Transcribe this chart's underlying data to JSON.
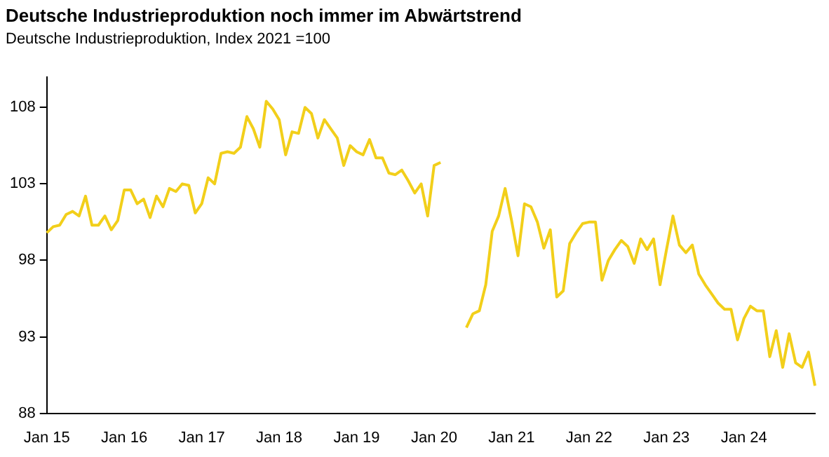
{
  "chart_data": {
    "type": "line",
    "title": "Deutsche Industrieproduktion noch immer im Abwärtstrend",
    "subtitle": "Deutsche Industrieproduktion, Index 2021 =100",
    "categories": [
      "Jan 15",
      null,
      null,
      null,
      null,
      null,
      null,
      null,
      null,
      null,
      null,
      null,
      "Jan 16",
      null,
      null,
      null,
      null,
      null,
      null,
      null,
      null,
      null,
      null,
      null,
      "Jan 17",
      null,
      null,
      null,
      null,
      null,
      null,
      null,
      null,
      null,
      null,
      null,
      "Jan 18",
      null,
      null,
      null,
      null,
      null,
      null,
      null,
      null,
      null,
      null,
      null,
      "Jan 19",
      null,
      null,
      null,
      null,
      null,
      null,
      null,
      null,
      null,
      null,
      null,
      "Jan 20",
      null,
      null,
      null,
      null,
      null,
      null,
      null,
      null,
      null,
      null,
      null,
      "Jan 21",
      null,
      null,
      null,
      null,
      null,
      null,
      null,
      null,
      null,
      null,
      null,
      "Jan 22",
      null,
      null,
      null,
      null,
      null,
      null,
      null,
      null,
      null,
      null,
      null,
      "Jan 23",
      null,
      null,
      null,
      null,
      null,
      null,
      null,
      null,
      null,
      null,
      null,
      "Jan 24",
      null,
      null,
      null,
      null,
      null,
      null,
      null,
      null,
      null,
      null,
      null
    ],
    "series": [
      {
        "color": "#f2cf1a",
        "values": [
          99.8,
          100.2,
          100.3,
          101.0,
          101.2,
          100.9,
          102.2,
          100.3,
          100.3,
          100.9,
          100.0,
          100.6,
          102.6,
          102.6,
          101.7,
          102.0,
          100.8,
          102.2,
          101.5,
          102.7,
          102.5,
          103.0,
          102.9,
          101.1,
          101.7,
          103.4,
          103.0,
          105.0,
          105.1,
          105.0,
          105.4,
          107.4,
          106.6,
          105.4,
          108.4,
          107.9,
          107.2,
          104.9,
          106.4,
          106.3,
          108.0,
          107.6,
          106.0,
          107.2,
          106.6,
          106.0,
          104.2,
          105.5,
          105.1,
          104.9,
          105.9,
          104.7,
          104.7,
          103.7,
          103.6,
          103.9,
          103.2,
          102.4,
          103.0,
          100.9,
          104.2,
          104.4,
          null,
          null,
          null,
          93.6,
          94.5,
          94.7,
          96.4,
          99.9,
          100.9,
          102.7,
          100.6,
          98.3,
          101.7,
          101.5,
          100.5,
          98.8,
          100.0,
          95.6,
          96.0,
          99.1,
          99.8,
          100.4,
          100.5,
          100.5,
          96.7,
          98.0,
          98.7,
          99.3,
          98.9,
          97.8,
          99.4,
          98.7,
          99.4,
          96.4,
          98.7,
          100.9,
          99.0,
          98.5,
          99.0,
          97.1,
          96.4,
          95.8,
          95.2,
          94.8,
          94.8,
          92.8,
          94.2,
          95.0,
          94.7,
          94.7,
          91.7,
          93.4,
          91.0,
          93.2,
          91.3,
          91.0,
          92.0,
          89.8
        ]
      }
    ],
    "ylim": [
      88,
      110
    ],
    "yticks": [
      88,
      93,
      98,
      103,
      108
    ],
    "marker": "none",
    "line_style": "solid"
  }
}
